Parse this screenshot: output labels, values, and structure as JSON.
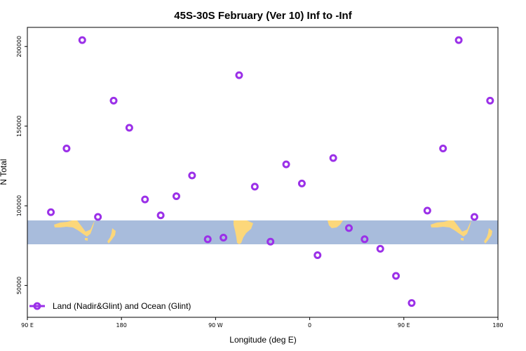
{
  "chart_data": {
    "type": "scatter",
    "title": "45S-30S February (Ver 10)   Inf to -Inf",
    "xlabel": "Longitude (deg E)",
    "ylabel": "N Total",
    "xlim": [
      90,
      450
    ],
    "ylim": [
      30000,
      212000
    ],
    "x_ticks": [
      {
        "value": 90,
        "label": "90 E"
      },
      {
        "value": 162,
        "label": "180"
      },
      {
        "value": 234,
        "label": "90 W"
      },
      {
        "value": 306,
        "label": "0"
      },
      {
        "value": 378,
        "label": "90 E"
      },
      {
        "value": 450,
        "label": "180"
      }
    ],
    "y_ticks": [
      {
        "value": 50000,
        "label": "50000"
      },
      {
        "value": 100000,
        "label": "100000"
      },
      {
        "value": 150000,
        "label": "150000"
      },
      {
        "value": 200000,
        "label": "200000"
      }
    ],
    "legend": {
      "position": "bottom-left"
    },
    "map_strip": {
      "lat_range": "45S-30S",
      "ocean_color": "#a8bcdc",
      "land_color": "#fcd77a"
    },
    "series": [
      {
        "name": "Land (Nadir&Glint) and Ocean (Glint)",
        "color": "#9b30e8",
        "marker": "open-circle",
        "points": [
          {
            "x": 108,
            "y": 96000
          },
          {
            "x": 120,
            "y": 136000
          },
          {
            "x": 132,
            "y": 204000
          },
          {
            "x": 144,
            "y": 93000
          },
          {
            "x": 156,
            "y": 166000
          },
          {
            "x": 168,
            "y": 149000
          },
          {
            "x": 180,
            "y": 104000
          },
          {
            "x": 192,
            "y": 94000
          },
          {
            "x": 204,
            "y": 106000
          },
          {
            "x": 216,
            "y": 119000
          },
          {
            "x": 228,
            "y": 79000
          },
          {
            "x": 240,
            "y": 80000
          },
          {
            "x": 252,
            "y": 182000
          },
          {
            "x": 264,
            "y": 112000
          },
          {
            "x": 276,
            "y": 77500
          },
          {
            "x": 288,
            "y": 126000
          },
          {
            "x": 300,
            "y": 114000
          },
          {
            "x": 312,
            "y": 69000
          },
          {
            "x": 324,
            "y": 130000
          },
          {
            "x": 336,
            "y": 86000
          },
          {
            "x": 348,
            "y": 79000
          },
          {
            "x": 360,
            "y": 73000
          },
          {
            "x": 372,
            "y": 56000
          },
          {
            "x": 384,
            "y": 39000
          },
          {
            "x": 396,
            "y": 97000
          },
          {
            "x": 408,
            "y": 136000
          },
          {
            "x": 420,
            "y": 204000
          },
          {
            "x": 432,
            "y": 93000
          },
          {
            "x": 444,
            "y": 166000
          }
        ]
      }
    ]
  }
}
